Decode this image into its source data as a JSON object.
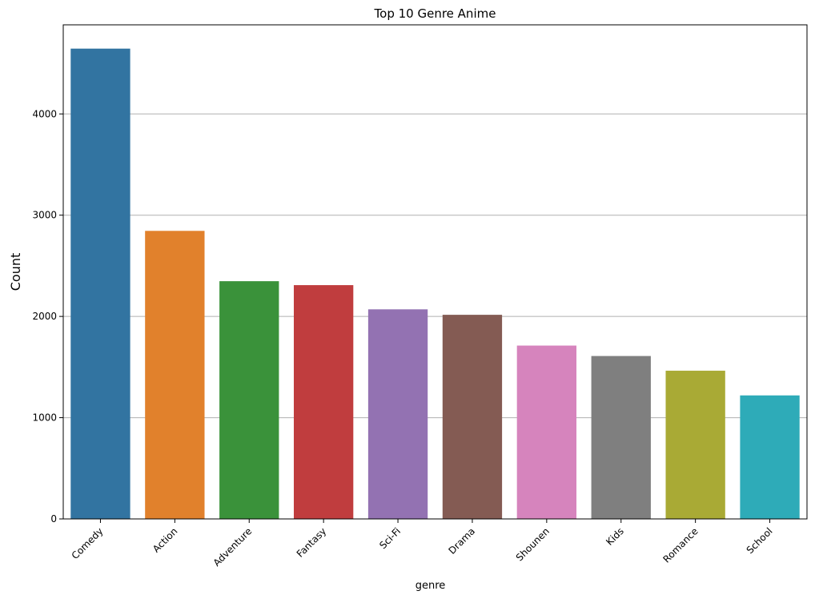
{
  "chart_data": {
    "type": "bar",
    "title": "Top 10 Genre Anime",
    "xlabel": "genre",
    "ylabel": "Count",
    "categories": [
      "Comedy",
      "Action",
      "Adventure",
      "Fantasy",
      "Sci-Fi",
      "Drama",
      "Shounen",
      "Kids",
      "Romance",
      "School"
    ],
    "values": [
      4645,
      2845,
      2348,
      2309,
      2070,
      2016,
      1712,
      1609,
      1464,
      1220
    ],
    "colors": [
      "#3274a1",
      "#e1812c",
      "#3a923a",
      "#c03d3e",
      "#9372b2",
      "#845b53",
      "#d684bd",
      "#7f7f7f",
      "#a9aa35",
      "#2eabb8"
    ],
    "ylim": [
      0,
      4880
    ],
    "yticks": [
      0,
      1000,
      2000,
      3000,
      4000
    ],
    "ytick_labels": [
      "0",
      "1000",
      "2000",
      "3000",
      "4000"
    ],
    "grid": "y-axis major",
    "legend": "none",
    "xtick_rotation": 45
  }
}
